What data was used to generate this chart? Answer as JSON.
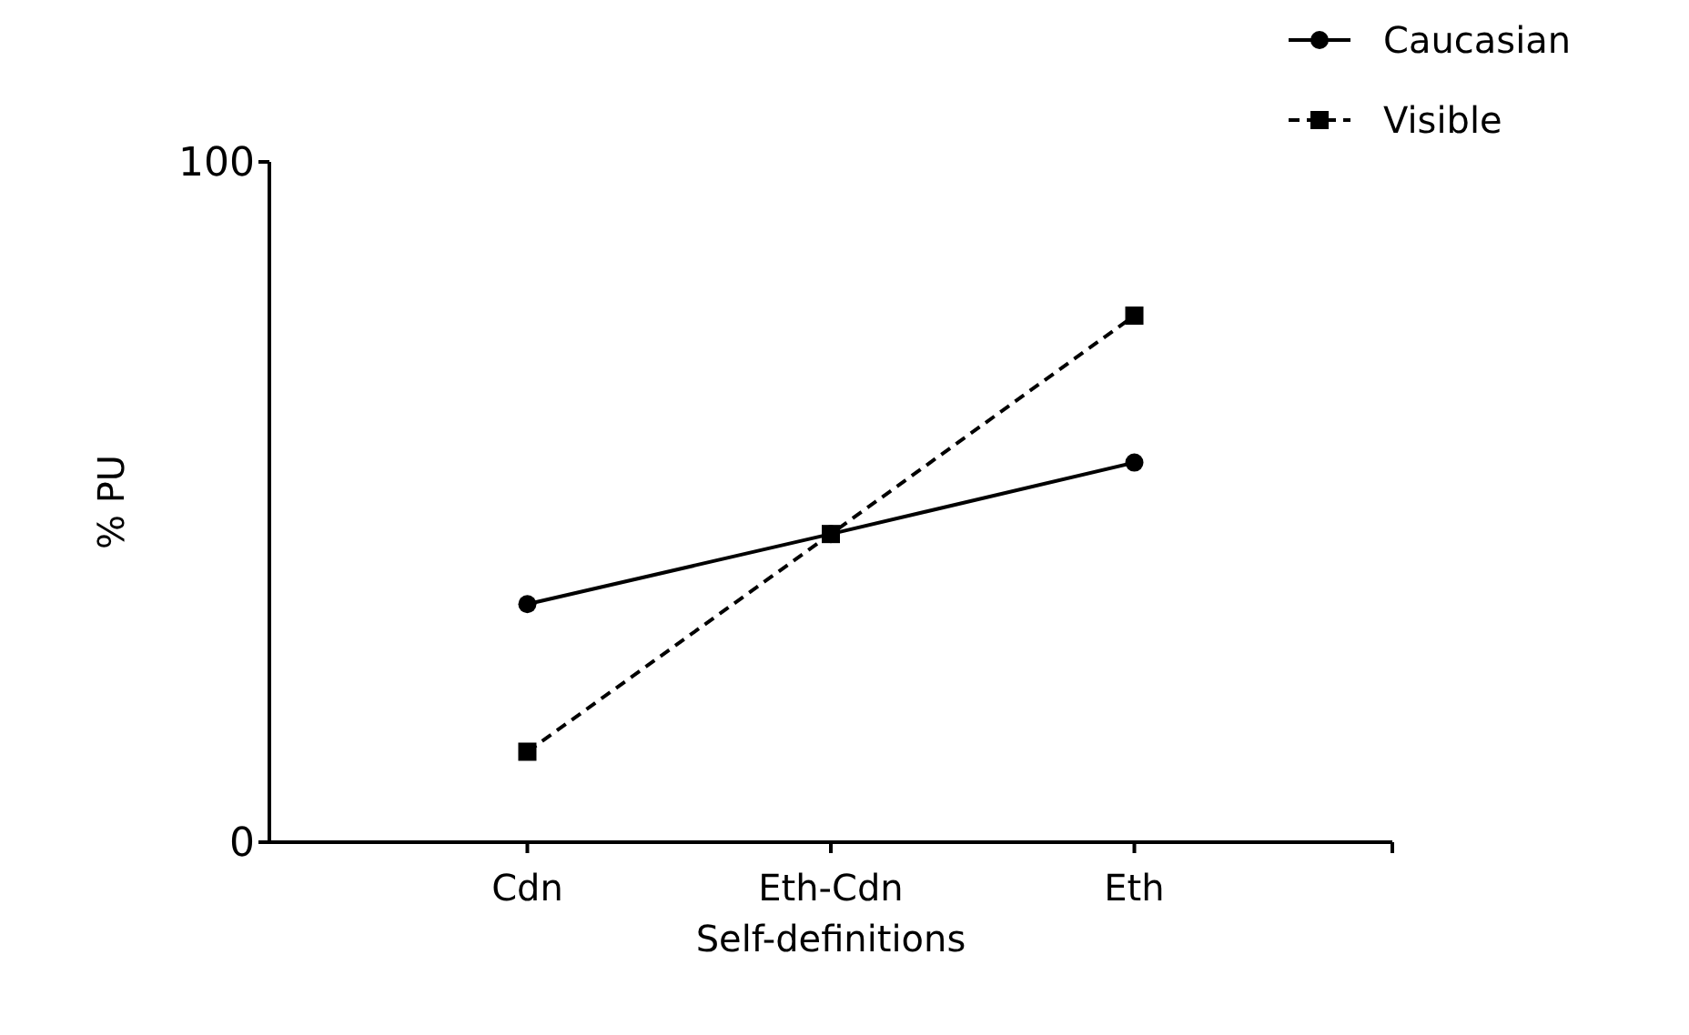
{
  "chart_data": {
    "type": "line",
    "xlabel": "Self-definitions",
    "ylabel": "% PU",
    "categories": [
      "Cdn",
      "Eth-Cdn",
      "Eth"
    ],
    "series": [
      {
        "name": "Caucasian",
        "color": "#000000",
        "values": [
          35,
          45.3,
          55.8
        ],
        "marker": "circle",
        "line_style": "solid"
      },
      {
        "name": "Visible",
        "color": "#000000",
        "values": [
          13.3,
          45.3,
          77.4
        ],
        "marker": "square",
        "line_style": "dashed"
      }
    ],
    "ylim": [
      0,
      100
    ],
    "yticks": [
      0,
      100
    ],
    "grid": false,
    "legend": "top right"
  }
}
